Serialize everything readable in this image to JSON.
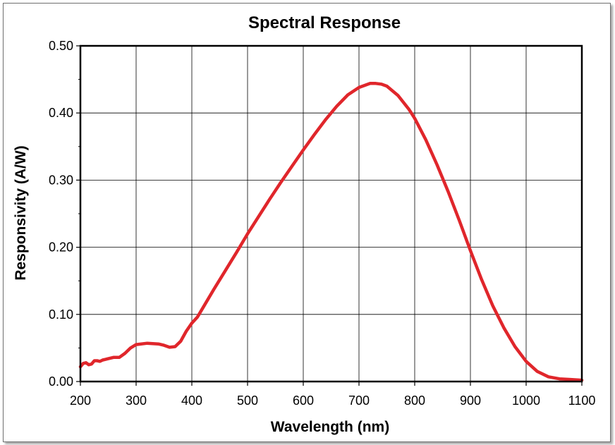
{
  "chart_data": {
    "type": "line",
    "title": "Spectral Response",
    "xlabel": "Wavelength (nm)",
    "ylabel": "Responsivity (A/W)",
    "xlim": [
      200,
      1100
    ],
    "ylim": [
      0,
      0.5
    ],
    "xticks": [
      200,
      300,
      400,
      500,
      600,
      700,
      800,
      900,
      1000,
      1100
    ],
    "yticks": [
      "0.00",
      "0.10",
      "0.20",
      "0.30",
      "0.40",
      "0.50"
    ],
    "grid": true,
    "legend": "none",
    "series": [
      {
        "color": "#e0262b",
        "x": [
          200,
          205,
          210,
          215,
          220,
          225,
          230,
          235,
          240,
          245,
          250,
          260,
          270,
          280,
          290,
          300,
          320,
          340,
          350,
          360,
          370,
          380,
          390,
          400,
          410,
          420,
          440,
          460,
          480,
          500,
          520,
          540,
          560,
          580,
          600,
          620,
          640,
          660,
          680,
          700,
          720,
          730,
          740,
          750,
          770,
          790,
          800,
          820,
          840,
          860,
          880,
          900,
          920,
          940,
          960,
          980,
          1000,
          1020,
          1040,
          1060,
          1080,
          1100
        ],
        "y": [
          0.022,
          0.027,
          0.028,
          0.025,
          0.026,
          0.031,
          0.031,
          0.03,
          0.032,
          0.033,
          0.034,
          0.036,
          0.036,
          0.042,
          0.05,
          0.055,
          0.057,
          0.056,
          0.054,
          0.051,
          0.052,
          0.06,
          0.075,
          0.087,
          0.096,
          0.11,
          0.138,
          0.165,
          0.192,
          0.22,
          0.246,
          0.272,
          0.297,
          0.321,
          0.345,
          0.368,
          0.39,
          0.41,
          0.427,
          0.438,
          0.444,
          0.444,
          0.443,
          0.44,
          0.426,
          0.405,
          0.392,
          0.36,
          0.323,
          0.283,
          0.24,
          0.195,
          0.152,
          0.113,
          0.08,
          0.052,
          0.03,
          0.015,
          0.007,
          0.004,
          0.003,
          0.002
        ]
      }
    ]
  }
}
